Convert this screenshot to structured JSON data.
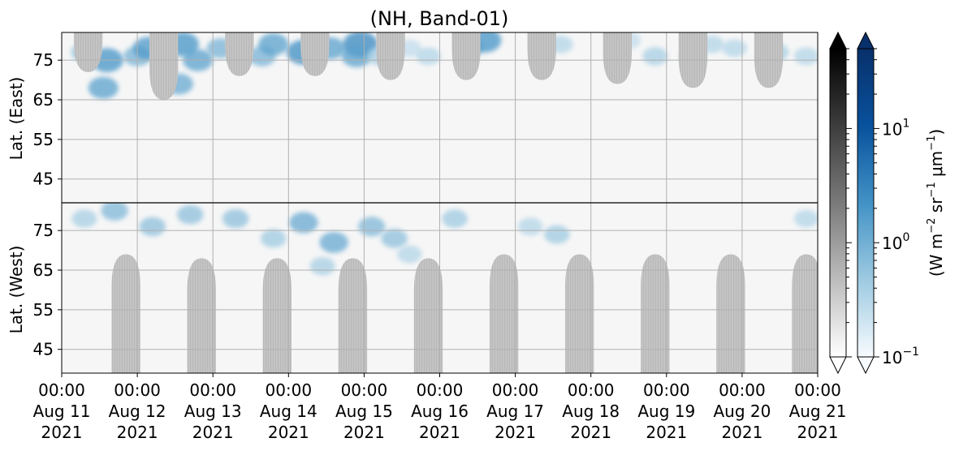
{
  "chart_data": {
    "type": "heatmap",
    "title": "(NH, Band-01)",
    "panels": [
      {
        "name": "east",
        "ylabel": "Lat. (East)",
        "ylim": [
          39,
          82
        ],
        "yticks": [
          "45",
          "55",
          "65",
          "75"
        ],
        "ytick_values": [
          45,
          55,
          65,
          75
        ]
      },
      {
        "name": "west",
        "ylabel": "Lat. (West)",
        "ylim": [
          82,
          39
        ],
        "yticks": [
          "75",
          "65",
          "55",
          "45"
        ],
        "ytick_values": [
          75,
          65,
          55,
          45
        ]
      }
    ],
    "x": {
      "start": "2021-08-11 00:00",
      "end": "2021-08-21 00:00",
      "ticks": [
        {
          "time": "00:00",
          "date": "Aug 11",
          "year": "2021"
        },
        {
          "time": "00:00",
          "date": "Aug 12",
          "year": "2021"
        },
        {
          "time": "00:00",
          "date": "Aug 13",
          "year": "2021"
        },
        {
          "time": "00:00",
          "date": "Aug 14",
          "year": "2021"
        },
        {
          "time": "00:00",
          "date": "Aug 15",
          "year": "2021"
        },
        {
          "time": "00:00",
          "date": "Aug 16",
          "year": "2021"
        },
        {
          "time": "00:00",
          "date": "Aug 17",
          "year": "2021"
        },
        {
          "time": "00:00",
          "date": "Aug 18",
          "year": "2021"
        },
        {
          "time": "00:00",
          "date": "Aug 19",
          "year": "2021"
        },
        {
          "time": "00:00",
          "date": "Aug 20",
          "year": "2021"
        },
        {
          "time": "00:00",
          "date": "Aug 21",
          "year": "2021"
        }
      ]
    },
    "grid": true,
    "daylight_regions": {
      "color": "#c4c4c4",
      "east": [
        {
          "day": 0.35,
          "bottom_lat": 72
        },
        {
          "day": 1.35,
          "bottom_lat": 65
        },
        {
          "day": 2.35,
          "bottom_lat": 71
        },
        {
          "day": 3.35,
          "bottom_lat": 71
        },
        {
          "day": 4.35,
          "bottom_lat": 70
        },
        {
          "day": 5.35,
          "bottom_lat": 70
        },
        {
          "day": 6.35,
          "bottom_lat": 70
        },
        {
          "day": 7.35,
          "bottom_lat": 69
        },
        {
          "day": 8.35,
          "bottom_lat": 68
        },
        {
          "day": 9.35,
          "bottom_lat": 68
        }
      ],
      "west": [
        {
          "day": 0.85,
          "top_lat": 69
        },
        {
          "day": 1.85,
          "top_lat": 68
        },
        {
          "day": 2.85,
          "top_lat": 68
        },
        {
          "day": 3.85,
          "top_lat": 68
        },
        {
          "day": 4.85,
          "top_lat": 68
        },
        {
          "day": 5.85,
          "top_lat": 69
        },
        {
          "day": 6.85,
          "top_lat": 69
        },
        {
          "day": 7.85,
          "top_lat": 69
        },
        {
          "day": 8.85,
          "top_lat": 69
        },
        {
          "day": 9.85,
          "top_lat": 69
        }
      ]
    },
    "radiance_blobs": [
      {
        "panel": "east",
        "day": 0.3,
        "lat": 77,
        "value": 1.5
      },
      {
        "panel": "east",
        "day": 0.6,
        "lat": 75,
        "value": 4.0
      },
      {
        "panel": "east",
        "day": 0.55,
        "lat": 68,
        "value": 3.0
      },
      {
        "panel": "east",
        "day": 1.0,
        "lat": 76,
        "value": 2.0
      },
      {
        "panel": "east",
        "day": 1.15,
        "lat": 78,
        "value": 3.5
      },
      {
        "panel": "east",
        "day": 1.6,
        "lat": 79,
        "value": 4.0
      },
      {
        "panel": "east",
        "day": 1.55,
        "lat": 69,
        "value": 2.5
      },
      {
        "panel": "east",
        "day": 1.8,
        "lat": 75,
        "value": 3.0
      },
      {
        "panel": "east",
        "day": 2.1,
        "lat": 78,
        "value": 2.0
      },
      {
        "panel": "east",
        "day": 2.65,
        "lat": 76,
        "value": 2.0
      },
      {
        "panel": "east",
        "day": 2.8,
        "lat": 79,
        "value": 3.0
      },
      {
        "panel": "east",
        "day": 3.2,
        "lat": 77,
        "value": 4.5
      },
      {
        "panel": "east",
        "day": 3.55,
        "lat": 78,
        "value": 3.0
      },
      {
        "panel": "east",
        "day": 3.95,
        "lat": 79,
        "value": 5.0
      },
      {
        "panel": "east",
        "day": 3.9,
        "lat": 76,
        "value": 3.0
      },
      {
        "panel": "east",
        "day": 4.2,
        "lat": 76,
        "value": 1.0
      },
      {
        "panel": "east",
        "day": 4.6,
        "lat": 78,
        "value": 0.6
      },
      {
        "panel": "east",
        "day": 4.85,
        "lat": 76,
        "value": 0.8
      },
      {
        "panel": "east",
        "day": 5.4,
        "lat": 78,
        "value": 1.5
      },
      {
        "panel": "east",
        "day": 5.6,
        "lat": 80,
        "value": 4.0
      },
      {
        "panel": "east",
        "day": 6.6,
        "lat": 79,
        "value": 0.8
      },
      {
        "panel": "east",
        "day": 7.5,
        "lat": 80,
        "value": 0.6
      },
      {
        "panel": "east",
        "day": 7.85,
        "lat": 76,
        "value": 1.0
      },
      {
        "panel": "east",
        "day": 8.35,
        "lat": 76,
        "value": 1.2
      },
      {
        "panel": "east",
        "day": 8.6,
        "lat": 79,
        "value": 0.8
      },
      {
        "panel": "east",
        "day": 8.9,
        "lat": 78,
        "value": 0.8
      },
      {
        "panel": "east",
        "day": 9.45,
        "lat": 77,
        "value": 1.0
      },
      {
        "panel": "east",
        "day": 9.85,
        "lat": 76,
        "value": 0.8
      },
      {
        "panel": "west",
        "day": 0.3,
        "lat": 78,
        "value": 1.0
      },
      {
        "panel": "west",
        "day": 0.7,
        "lat": 80,
        "value": 1.8
      },
      {
        "panel": "west",
        "day": 1.2,
        "lat": 76,
        "value": 1.5
      },
      {
        "panel": "west",
        "day": 1.7,
        "lat": 79,
        "value": 1.5
      },
      {
        "panel": "west",
        "day": 2.3,
        "lat": 78,
        "value": 1.5
      },
      {
        "panel": "west",
        "day": 2.8,
        "lat": 73,
        "value": 1.2
      },
      {
        "panel": "west",
        "day": 3.2,
        "lat": 77,
        "value": 2.5
      },
      {
        "panel": "west",
        "day": 3.6,
        "lat": 72,
        "value": 2.5
      },
      {
        "panel": "west",
        "day": 3.45,
        "lat": 66,
        "value": 1.0
      },
      {
        "panel": "west",
        "day": 4.1,
        "lat": 76,
        "value": 1.8
      },
      {
        "panel": "west",
        "day": 4.4,
        "lat": 73,
        "value": 1.5
      },
      {
        "panel": "west",
        "day": 4.6,
        "lat": 69,
        "value": 0.8
      },
      {
        "panel": "west",
        "day": 5.2,
        "lat": 78,
        "value": 1.2
      },
      {
        "panel": "west",
        "day": 6.2,
        "lat": 76,
        "value": 0.8
      },
      {
        "panel": "west",
        "day": 6.55,
        "lat": 74,
        "value": 1.2
      },
      {
        "panel": "west",
        "day": 9.85,
        "lat": 78,
        "value": 0.8
      }
    ],
    "colorbars": [
      {
        "name": "gray",
        "extend": "both",
        "top_color": "#000000",
        "bottom_color": "#ffffff"
      },
      {
        "name": "blue",
        "extend": "both",
        "top_color": "#08306b",
        "bottom_color": "#f7fbff",
        "label": "(W m⁻² sr⁻¹ μm⁻¹)",
        "scale": "log",
        "range": [
          0.1,
          50
        ],
        "ticks": [
          {
            "value": 10,
            "base": "10",
            "exp": "1"
          },
          {
            "value": 1,
            "base": "10",
            "exp": "0"
          },
          {
            "value": 0.1,
            "base": "10",
            "exp": "−1"
          }
        ]
      }
    ]
  }
}
